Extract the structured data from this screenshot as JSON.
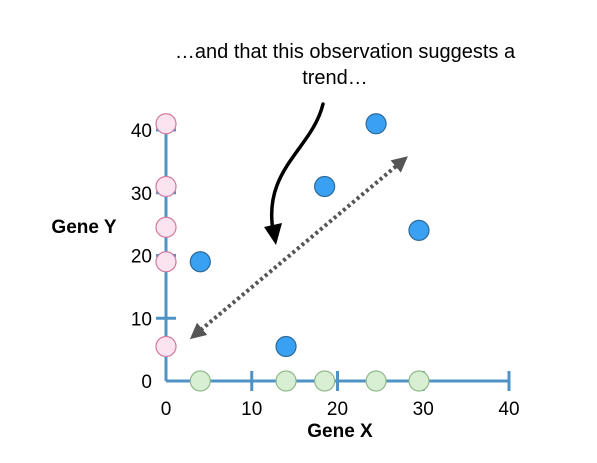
{
  "chart_data": {
    "type": "scatter",
    "title": "",
    "xlabel": "Gene X",
    "ylabel": "Gene Y",
    "xlim": [
      0,
      40
    ],
    "ylim": [
      0,
      40
    ],
    "x_ticks": [
      "0",
      "10",
      "20",
      "30",
      "40"
    ],
    "y_ticks": [
      "0",
      "10",
      "20",
      "30",
      "40"
    ],
    "grid": false,
    "series": [
      {
        "color": "#3aa0f2",
        "points": [
          {
            "x": 4,
            "y": 19
          },
          {
            "x": 14,
            "y": 5.5
          },
          {
            "x": 18.5,
            "y": 31
          },
          {
            "x": 24.5,
            "y": 41
          },
          {
            "x": 29.5,
            "y": 24
          }
        ]
      },
      {
        "color": "#fbe3ef",
        "points": [
          {
            "x": 0,
            "y": 41
          },
          {
            "x": 0,
            "y": 31
          },
          {
            "x": 0,
            "y": 24.5
          },
          {
            "x": 0,
            "y": 19
          },
          {
            "x": 0,
            "y": 5.5
          }
        ]
      },
      {
        "color": "#d9efd3",
        "points": [
          {
            "x": 4,
            "y": 0
          },
          {
            "x": 14,
            "y": 0
          },
          {
            "x": 18.5,
            "y": 0
          },
          {
            "x": 24.5,
            "y": 0
          },
          {
            "x": 29.5,
            "y": 0
          }
        ]
      }
    ],
    "annotations": [
      {
        "text_lines": [
          "…and that this observation suggests a",
          "trend…"
        ]
      }
    ],
    "trend_line": {
      "from": {
        "x": 3.5,
        "y": 7.5
      },
      "to": {
        "x": 27.5,
        "y": 35
      }
    }
  },
  "colors": {
    "axis": "#4f93c6",
    "point_stroke": "#2d6a99",
    "arrow": "#000000",
    "trend": "#555555"
  }
}
